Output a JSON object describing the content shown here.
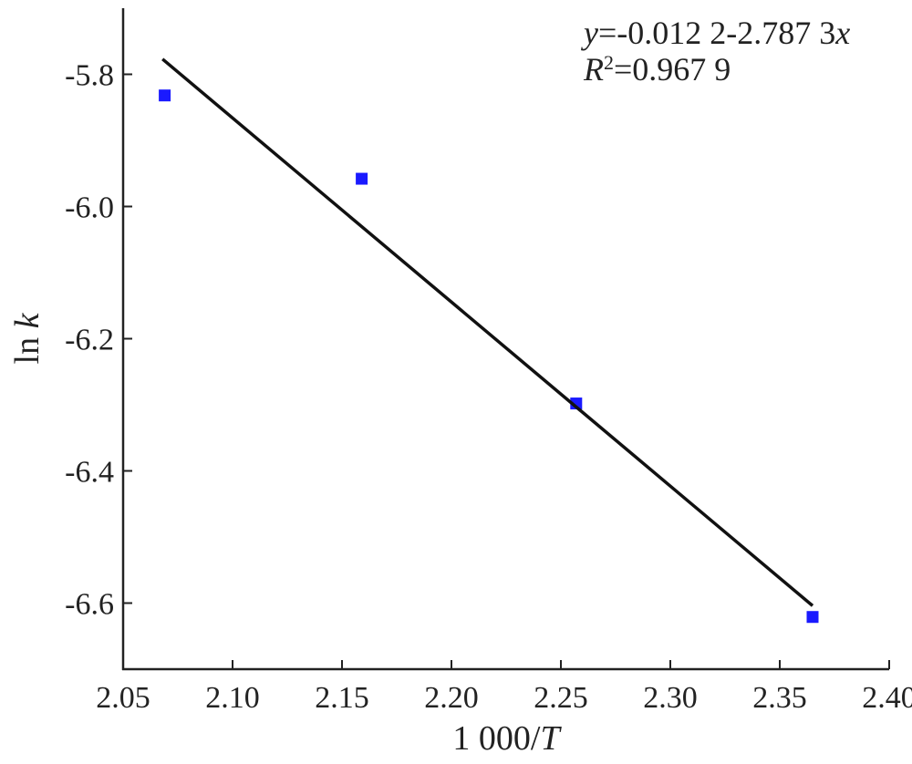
{
  "chart_data": {
    "type": "scatter",
    "series": [
      {
        "type": "scatter",
        "color": "#1a1aff",
        "x": [
          2.069,
          2.159,
          2.257,
          2.365
        ],
        "values": [
          -5.832,
          -5.958,
          -6.298,
          -6.621
        ]
      },
      {
        "type": "line",
        "color": "#111111",
        "x": [
          2.068,
          2.365
        ],
        "values": [
          -5.777,
          -6.604
        ]
      }
    ],
    "x_label": [
      {
        "text": "1 000/",
        "italic": false
      },
      {
        "text": "T",
        "italic": true
      }
    ],
    "y_label": [
      {
        "text": "ln ",
        "italic": false
      },
      {
        "text": "k",
        "italic": true
      }
    ],
    "annotations": [
      [
        {
          "text": "y",
          "italic": true
        },
        {
          "text": "=-0.012 2-2.787 3",
          "italic": false
        },
        {
          "text": "x",
          "italic": true
        }
      ],
      [
        {
          "text": "R",
          "italic": true
        },
        {
          "text": "2",
          "italic": false,
          "superscript": true
        },
        {
          "text": "=0.967 9",
          "italic": false
        }
      ]
    ],
    "xlim": [
      2.05,
      2.4
    ],
    "ylim": [
      -6.7,
      -5.7
    ],
    "xticks": [
      2.05,
      {
        "value": 2.1,
        "label": "2.10"
      },
      2.15,
      {
        "value": 2.2,
        "label": "2.20"
      },
      2.25,
      {
        "value": 2.3,
        "label": "2.30"
      },
      2.35,
      {
        "value": 2.4,
        "label": "2.40"
      }
    ],
    "yticks": [
      -5.8,
      {
        "value": -6.0,
        "label": "-6.0"
      },
      -6.2,
      -6.4,
      -6.6
    ],
    "grid": false
  }
}
